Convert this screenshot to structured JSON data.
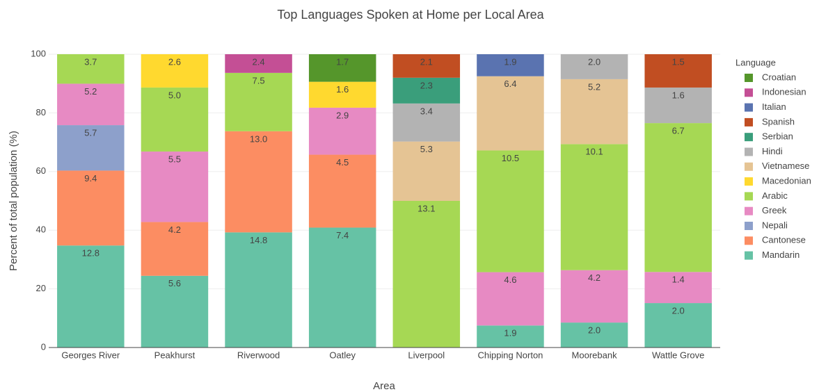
{
  "chart_data": {
    "type": "stacked_bar",
    "barnorm": "percent",
    "title": "Top Languages Spoken at Home per Local Area",
    "x_label": "Area",
    "y_label": "Percent of total population (%)",
    "legend_title": "Language",
    "categories": [
      "Georges River",
      "Peakhurst",
      "Riverwood",
      "Oatley",
      "Liverpool",
      "Chipping Norton",
      "Moorebank",
      "Wattle Grove"
    ],
    "ylim": [
      0,
      100
    ],
    "yticks": [
      0,
      20,
      40,
      60,
      80,
      100
    ],
    "grid": true,
    "series": [
      {
        "name": "Mandarin",
        "color": "#66c2a5",
        "values": [
          12.8,
          5.6,
          14.8,
          7.4,
          null,
          1.9,
          2.0,
          2.0
        ],
        "value_labels": [
          "12.8",
          "5.6",
          "14.8",
          "7.4",
          null,
          "1.9",
          "2.0",
          "2.0"
        ]
      },
      {
        "name": "Cantonese",
        "color": "#fc8d62",
        "values": [
          9.4,
          4.2,
          13.0,
          4.5,
          null,
          null,
          null,
          null
        ],
        "value_labels": [
          "9.4",
          "4.2",
          "13.0",
          "4.5",
          null,
          null,
          null,
          null
        ]
      },
      {
        "name": "Nepali",
        "color": "#8da0cb",
        "values": [
          5.7,
          null,
          null,
          null,
          null,
          null,
          null,
          null
        ],
        "value_labels": [
          "5.7",
          null,
          null,
          null,
          null,
          null,
          null,
          null
        ]
      },
      {
        "name": "Greek",
        "color": "#e78ac3",
        "values": [
          5.2,
          5.5,
          null,
          2.9,
          null,
          4.6,
          4.2,
          1.4
        ],
        "value_labels": [
          "5.2",
          "5.5",
          null,
          "2.9",
          null,
          "4.6",
          "4.2",
          "1.4"
        ]
      },
      {
        "name": "Arabic",
        "color": "#a6d854",
        "values": [
          3.7,
          5.0,
          7.5,
          null,
          13.1,
          10.5,
          10.1,
          6.7
        ],
        "value_labels": [
          "3.7",
          "5.0",
          "7.5",
          null,
          "13.1",
          "10.5",
          "10.1",
          "6.7"
        ]
      },
      {
        "name": "Macedonian",
        "color": "#ffd92f",
        "values": [
          null,
          2.6,
          null,
          1.6,
          null,
          null,
          null,
          null
        ],
        "value_labels": [
          null,
          "2.6",
          null,
          "1.6",
          null,
          null,
          null,
          null
        ]
      },
      {
        "name": "Vietnamese",
        "color": "#e5c494",
        "values": [
          null,
          null,
          null,
          null,
          5.3,
          6.4,
          5.2,
          null
        ],
        "value_labels": [
          null,
          null,
          null,
          null,
          "5.3",
          "6.4",
          "5.2",
          null
        ]
      },
      {
        "name": "Hindi",
        "color": "#b3b3b3",
        "values": [
          null,
          null,
          null,
          null,
          3.4,
          null,
          2.0,
          1.6
        ],
        "value_labels": [
          null,
          null,
          null,
          null,
          "3.4",
          null,
          "2.0",
          "1.6"
        ]
      },
      {
        "name": "Serbian",
        "color": "#3a9e7b",
        "values": [
          null,
          null,
          null,
          null,
          2.3,
          null,
          null,
          null
        ],
        "value_labels": [
          null,
          null,
          null,
          null,
          "2.3",
          null,
          null,
          null
        ]
      },
      {
        "name": "Spanish",
        "color": "#c14e22",
        "values": [
          null,
          null,
          null,
          null,
          2.1,
          null,
          null,
          1.5
        ],
        "value_labels": [
          null,
          null,
          null,
          null,
          "2.1",
          null,
          null,
          "1.5"
        ]
      },
      {
        "name": "Italian",
        "color": "#5a73b0",
        "values": [
          null,
          null,
          null,
          null,
          null,
          1.9,
          null,
          null
        ],
        "value_labels": [
          null,
          null,
          null,
          null,
          null,
          "1.9",
          null,
          null
        ]
      },
      {
        "name": "Indonesian",
        "color": "#c44f95",
        "values": [
          null,
          null,
          2.4,
          null,
          null,
          null,
          null,
          null
        ],
        "value_labels": [
          null,
          null,
          "2.4",
          null,
          null,
          null,
          null,
          null
        ]
      },
      {
        "name": "Croatian",
        "color": "#55962b",
        "values": [
          null,
          null,
          null,
          1.7,
          null,
          null,
          null,
          null
        ],
        "value_labels": [
          null,
          null,
          null,
          "1.7",
          null,
          null,
          null,
          null
        ]
      }
    ]
  }
}
